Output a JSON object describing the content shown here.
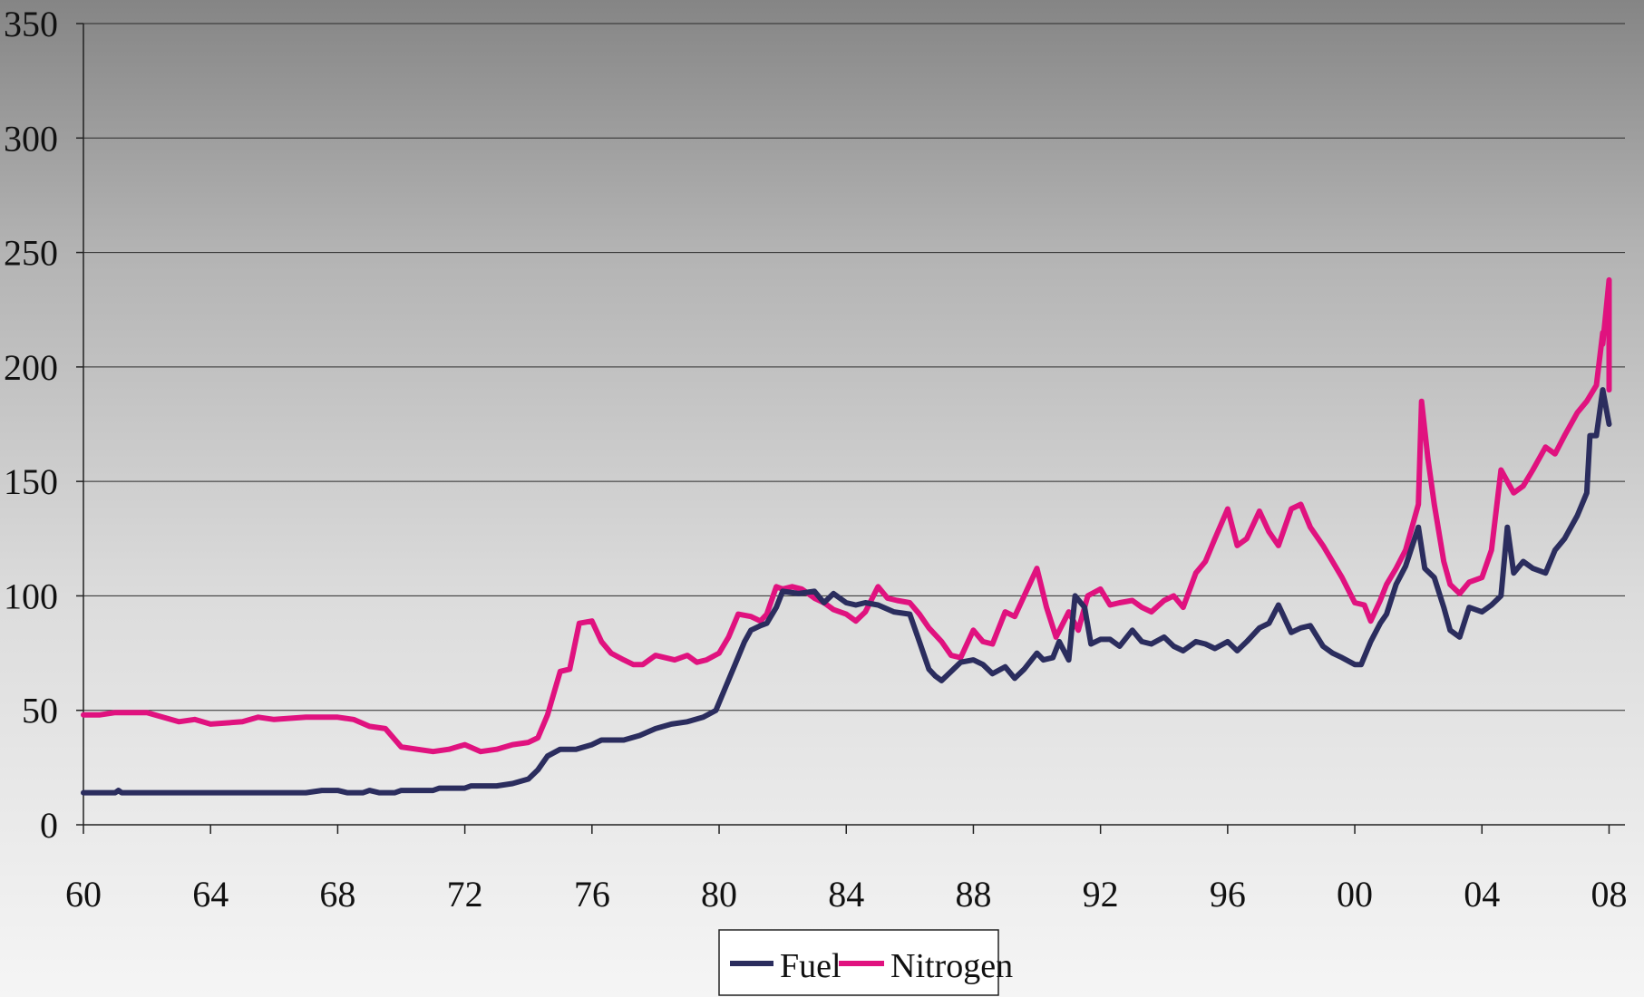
{
  "chart_data": {
    "type": "line",
    "title": "",
    "xlabel": "",
    "ylabel": "",
    "xlim": [
      1960,
      2008.5
    ],
    "ylim": [
      0,
      350
    ],
    "x_ticks": [
      {
        "value": 1960,
        "label": "60"
      },
      {
        "value": 1964,
        "label": "64"
      },
      {
        "value": 1968,
        "label": "68"
      },
      {
        "value": 1972,
        "label": "72"
      },
      {
        "value": 1976,
        "label": "76"
      },
      {
        "value": 1980,
        "label": "80"
      },
      {
        "value": 1984,
        "label": "84"
      },
      {
        "value": 1988,
        "label": "88"
      },
      {
        "value": 1992,
        "label": "92"
      },
      {
        "value": 1996,
        "label": "96"
      },
      {
        "value": 2000,
        "label": "00"
      },
      {
        "value": 2004,
        "label": "04"
      },
      {
        "value": 2008,
        "label": "08"
      }
    ],
    "y_ticks": [
      {
        "value": 0,
        "label": "0"
      },
      {
        "value": 50,
        "label": "50"
      },
      {
        "value": 100,
        "label": "100"
      },
      {
        "value": 150,
        "label": "150"
      },
      {
        "value": 200,
        "label": "200"
      },
      {
        "value": 250,
        "label": "250"
      },
      {
        "value": 300,
        "label": "300"
      },
      {
        "value": 350,
        "label": "350"
      }
    ],
    "grid": "horizontal",
    "legend_position": "bottom-center",
    "series": [
      {
        "name": "Fuel",
        "color": "#2b2d5e",
        "points": [
          [
            1960.0,
            14
          ],
          [
            1961.0,
            14
          ],
          [
            1961.1,
            15
          ],
          [
            1961.2,
            14
          ],
          [
            1963.0,
            14
          ],
          [
            1965.0,
            14
          ],
          [
            1966.0,
            14
          ],
          [
            1967.0,
            14
          ],
          [
            1967.5,
            15
          ],
          [
            1968.0,
            15
          ],
          [
            1968.3,
            14
          ],
          [
            1968.8,
            14
          ],
          [
            1969.0,
            15
          ],
          [
            1969.3,
            14
          ],
          [
            1969.8,
            14
          ],
          [
            1970.0,
            15
          ],
          [
            1971.0,
            15
          ],
          [
            1971.2,
            16
          ],
          [
            1972.0,
            16
          ],
          [
            1972.2,
            17
          ],
          [
            1973.0,
            17
          ],
          [
            1973.5,
            18
          ],
          [
            1974.0,
            20
          ],
          [
            1974.3,
            24
          ],
          [
            1974.6,
            30
          ],
          [
            1975.0,
            33
          ],
          [
            1975.5,
            33
          ],
          [
            1976.0,
            35
          ],
          [
            1976.3,
            37
          ],
          [
            1977.0,
            37
          ],
          [
            1977.5,
            39
          ],
          [
            1978.0,
            42
          ],
          [
            1978.5,
            44
          ],
          [
            1979.0,
            45
          ],
          [
            1979.5,
            47
          ],
          [
            1979.9,
            50
          ],
          [
            1980.2,
            60
          ],
          [
            1980.5,
            70
          ],
          [
            1980.8,
            80
          ],
          [
            1981.0,
            85
          ],
          [
            1981.3,
            87
          ],
          [
            1981.5,
            88
          ],
          [
            1981.8,
            95
          ],
          [
            1982.0,
            102
          ],
          [
            1982.5,
            101
          ],
          [
            1983.0,
            102
          ],
          [
            1983.3,
            97
          ],
          [
            1983.6,
            101
          ],
          [
            1984.0,
            97
          ],
          [
            1984.3,
            96
          ],
          [
            1984.6,
            97
          ],
          [
            1985.0,
            96
          ],
          [
            1985.5,
            93
          ],
          [
            1986.0,
            92
          ],
          [
            1986.3,
            80
          ],
          [
            1986.6,
            68
          ],
          [
            1986.8,
            65
          ],
          [
            1987.0,
            63
          ],
          [
            1987.3,
            67
          ],
          [
            1987.6,
            71
          ],
          [
            1988.0,
            72
          ],
          [
            1988.3,
            70
          ],
          [
            1988.6,
            66
          ],
          [
            1989.0,
            69
          ],
          [
            1989.3,
            64
          ],
          [
            1989.6,
            68
          ],
          [
            1990.0,
            75
          ],
          [
            1990.2,
            72
          ],
          [
            1990.5,
            73
          ],
          [
            1990.7,
            80
          ],
          [
            1991.0,
            72
          ],
          [
            1991.2,
            100
          ],
          [
            1991.5,
            95
          ],
          [
            1991.7,
            79
          ],
          [
            1992.0,
            81
          ],
          [
            1992.3,
            81
          ],
          [
            1992.6,
            78
          ],
          [
            1993.0,
            85
          ],
          [
            1993.3,
            80
          ],
          [
            1993.6,
            79
          ],
          [
            1994.0,
            82
          ],
          [
            1994.3,
            78
          ],
          [
            1994.6,
            76
          ],
          [
            1995.0,
            80
          ],
          [
            1995.3,
            79
          ],
          [
            1995.6,
            77
          ],
          [
            1996.0,
            80
          ],
          [
            1996.3,
            76
          ],
          [
            1996.6,
            80
          ],
          [
            1997.0,
            86
          ],
          [
            1997.3,
            88
          ],
          [
            1997.6,
            96
          ],
          [
            1998.0,
            84
          ],
          [
            1998.3,
            86
          ],
          [
            1998.6,
            87
          ],
          [
            1999.0,
            78
          ],
          [
            1999.3,
            75
          ],
          [
            1999.6,
            73
          ],
          [
            2000.0,
            70
          ],
          [
            2000.2,
            70
          ],
          [
            2000.5,
            80
          ],
          [
            2000.8,
            88
          ],
          [
            2001.0,
            92
          ],
          [
            2001.3,
            105
          ],
          [
            2001.6,
            113
          ],
          [
            2002.0,
            130
          ],
          [
            2002.2,
            112
          ],
          [
            2002.5,
            108
          ],
          [
            2002.8,
            95
          ],
          [
            2003.0,
            85
          ],
          [
            2003.3,
            82
          ],
          [
            2003.6,
            95
          ],
          [
            2004.0,
            93
          ],
          [
            2004.3,
            96
          ],
          [
            2004.6,
            100
          ],
          [
            2004.8,
            130
          ],
          [
            2005.0,
            110
          ],
          [
            2005.3,
            115
          ],
          [
            2005.6,
            112
          ],
          [
            2006.0,
            110
          ],
          [
            2006.3,
            120
          ],
          [
            2006.6,
            125
          ],
          [
            2007.0,
            135
          ],
          [
            2007.3,
            145
          ],
          [
            2007.6,
            170
          ],
          [
            2007.8,
            190
          ],
          [
            2008.0,
            175
          ],
          [
            2007.4,
            170
          ]
        ]
      },
      {
        "name": "Nitrogen",
        "color": "#e0127f",
        "points": [
          [
            1960.0,
            48
          ],
          [
            1960.5,
            48
          ],
          [
            1961.0,
            49
          ],
          [
            1962.0,
            49
          ],
          [
            1962.5,
            47
          ],
          [
            1963.0,
            45
          ],
          [
            1963.5,
            46
          ],
          [
            1964.0,
            44
          ],
          [
            1965.0,
            45
          ],
          [
            1965.5,
            47
          ],
          [
            1966.0,
            46
          ],
          [
            1967.0,
            47
          ],
          [
            1967.5,
            47
          ],
          [
            1968.0,
            47
          ],
          [
            1968.5,
            46
          ],
          [
            1969.0,
            43
          ],
          [
            1969.5,
            42
          ],
          [
            1970.0,
            34
          ],
          [
            1970.5,
            33
          ],
          [
            1971.0,
            32
          ],
          [
            1971.5,
            33
          ],
          [
            1972.0,
            35
          ],
          [
            1972.5,
            32
          ],
          [
            1973.0,
            33
          ],
          [
            1973.5,
            35
          ],
          [
            1974.0,
            36
          ],
          [
            1974.3,
            38
          ],
          [
            1974.6,
            48
          ],
          [
            1975.0,
            67
          ],
          [
            1975.3,
            68
          ],
          [
            1975.6,
            88
          ],
          [
            1976.0,
            89
          ],
          [
            1976.3,
            80
          ],
          [
            1976.6,
            75
          ],
          [
            1977.0,
            72
          ],
          [
            1977.3,
            70
          ],
          [
            1977.6,
            70
          ],
          [
            1978.0,
            74
          ],
          [
            1978.3,
            73
          ],
          [
            1978.6,
            72
          ],
          [
            1979.0,
            74
          ],
          [
            1979.3,
            71
          ],
          [
            1979.6,
            72
          ],
          [
            1980.0,
            75
          ],
          [
            1980.3,
            82
          ],
          [
            1980.6,
            92
          ],
          [
            1981.0,
            91
          ],
          [
            1981.3,
            89
          ],
          [
            1981.5,
            92
          ],
          [
            1981.8,
            104
          ],
          [
            1982.0,
            103
          ],
          [
            1982.3,
            104
          ],
          [
            1982.6,
            103
          ],
          [
            1983.0,
            99
          ],
          [
            1983.3,
            97
          ],
          [
            1983.6,
            94
          ],
          [
            1984.0,
            92
          ],
          [
            1984.3,
            89
          ],
          [
            1984.6,
            93
          ],
          [
            1985.0,
            104
          ],
          [
            1985.3,
            99
          ],
          [
            1985.6,
            98
          ],
          [
            1986.0,
            97
          ],
          [
            1986.3,
            92
          ],
          [
            1986.6,
            86
          ],
          [
            1987.0,
            80
          ],
          [
            1987.3,
            74
          ],
          [
            1987.6,
            73
          ],
          [
            1988.0,
            85
          ],
          [
            1988.3,
            80
          ],
          [
            1988.6,
            79
          ],
          [
            1989.0,
            93
          ],
          [
            1989.3,
            91
          ],
          [
            1989.6,
            100
          ],
          [
            1990.0,
            112
          ],
          [
            1990.3,
            95
          ],
          [
            1990.6,
            82
          ],
          [
            1991.0,
            93
          ],
          [
            1991.3,
            85
          ],
          [
            1991.6,
            100
          ],
          [
            1992.0,
            103
          ],
          [
            1992.3,
            96
          ],
          [
            1992.6,
            97
          ],
          [
            1993.0,
            98
          ],
          [
            1993.3,
            95
          ],
          [
            1993.6,
            93
          ],
          [
            1994.0,
            98
          ],
          [
            1994.3,
            100
          ],
          [
            1994.6,
            95
          ],
          [
            1995.0,
            110
          ],
          [
            1995.3,
            115
          ],
          [
            1995.6,
            125
          ],
          [
            1996.0,
            138
          ],
          [
            1996.3,
            122
          ],
          [
            1996.6,
            125
          ],
          [
            1997.0,
            137
          ],
          [
            1997.3,
            128
          ],
          [
            1997.6,
            122
          ],
          [
            1998.0,
            138
          ],
          [
            1998.3,
            140
          ],
          [
            1998.6,
            130
          ],
          [
            1999.0,
            122
          ],
          [
            1999.3,
            115
          ],
          [
            1999.6,
            108
          ],
          [
            2000.0,
            97
          ],
          [
            2000.3,
            96
          ],
          [
            2000.5,
            89
          ],
          [
            2000.8,
            98
          ],
          [
            2001.0,
            105
          ],
          [
            2001.3,
            112
          ],
          [
            2001.6,
            120
          ],
          [
            2002.0,
            140
          ],
          [
            2002.1,
            185
          ],
          [
            2002.3,
            160
          ],
          [
            2002.5,
            140
          ],
          [
            2002.8,
            115
          ],
          [
            2003.0,
            105
          ],
          [
            2003.3,
            101
          ],
          [
            2003.6,
            106
          ],
          [
            2004.0,
            108
          ],
          [
            2004.3,
            120
          ],
          [
            2004.6,
            155
          ],
          [
            2005.0,
            145
          ],
          [
            2005.3,
            148
          ],
          [
            2005.6,
            155
          ],
          [
            2006.0,
            165
          ],
          [
            2006.3,
            162
          ],
          [
            2006.6,
            170
          ],
          [
            2007.0,
            180
          ],
          [
            2007.3,
            185
          ],
          [
            2007.6,
            192
          ],
          [
            2007.8,
            215
          ],
          [
            2008.0,
            238
          ],
          [
            2007.8,
            210
          ],
          [
            2008.0,
            190
          ],
          [
            2007.3,
            185
          ]
        ]
      }
    ]
  }
}
